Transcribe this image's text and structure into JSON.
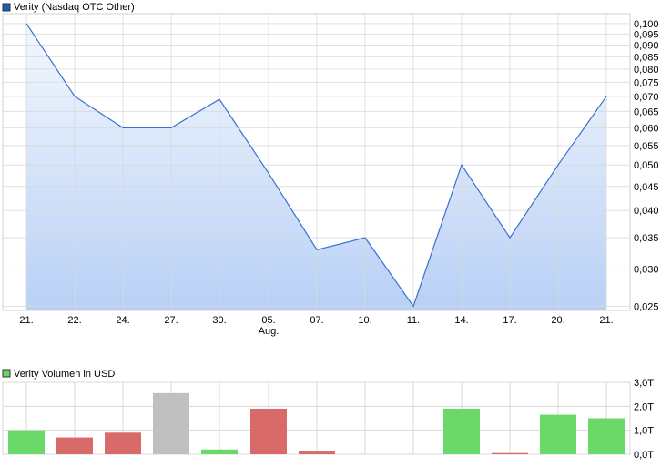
{
  "chart_data": [
    {
      "type": "area",
      "title": "Verity (Nasdaq OTC Other)",
      "legend_color": "#1f5bbf",
      "line_color": "#3a6fd0",
      "fill_top_color": "#f4f8fe",
      "fill_bottom_color": "#b8d0f6",
      "y_scale": "log",
      "ylim": [
        0.0245,
        0.105
      ],
      "grid": true,
      "x_ticks": [
        "21.",
        "22.",
        "24.",
        "27.",
        "30.",
        "05.",
        "07.",
        "10.",
        "11.",
        "14.",
        "17.",
        "20.",
        "21."
      ],
      "x_sublabel": {
        "index": 5,
        "text": "Aug."
      },
      "y_ticks": [
        0.1,
        0.095,
        0.09,
        0.085,
        0.08,
        0.075,
        0.07,
        0.065,
        0.06,
        0.055,
        0.05,
        0.045,
        0.04,
        0.035,
        0.03,
        0.025
      ],
      "y_tick_labels": [
        "0,100",
        "0,095",
        "0,090",
        "0,085",
        "0,080",
        "0,075",
        "0,070",
        "0,065",
        "0,060",
        "0,055",
        "0,050",
        "0,045",
        "0,040",
        "0,035",
        "0,030",
        "0,025"
      ],
      "values": [
        0.1,
        0.07,
        0.06,
        0.06,
        0.069,
        0.048,
        0.033,
        0.035,
        0.025,
        0.05,
        0.035,
        0.05,
        0.07
      ]
    },
    {
      "type": "bar",
      "title": "Verity Volumen in USD",
      "legend_color": "#6ad66a",
      "ylim": [
        0,
        3.0
      ],
      "grid": true,
      "y_ticks": [
        3.0,
        2.0,
        1.0,
        0.0
      ],
      "y_tick_labels": [
        "3,0T",
        "2,0T",
        "1,0T",
        "0,0T"
      ],
      "colors": {
        "up": "#6ad96a",
        "down": "#d96a6a",
        "neutral": "#c0c0c0"
      },
      "values": [
        1.0,
        0.7,
        0.9,
        2.55,
        0.2,
        1.9,
        0.15,
        0,
        0,
        1.9,
        0.05,
        1.65,
        1.5
      ],
      "direction": [
        "up",
        "down",
        "down",
        "neutral",
        "up",
        "down",
        "down",
        "none",
        "none",
        "up",
        "down",
        "up",
        "up"
      ]
    }
  ]
}
